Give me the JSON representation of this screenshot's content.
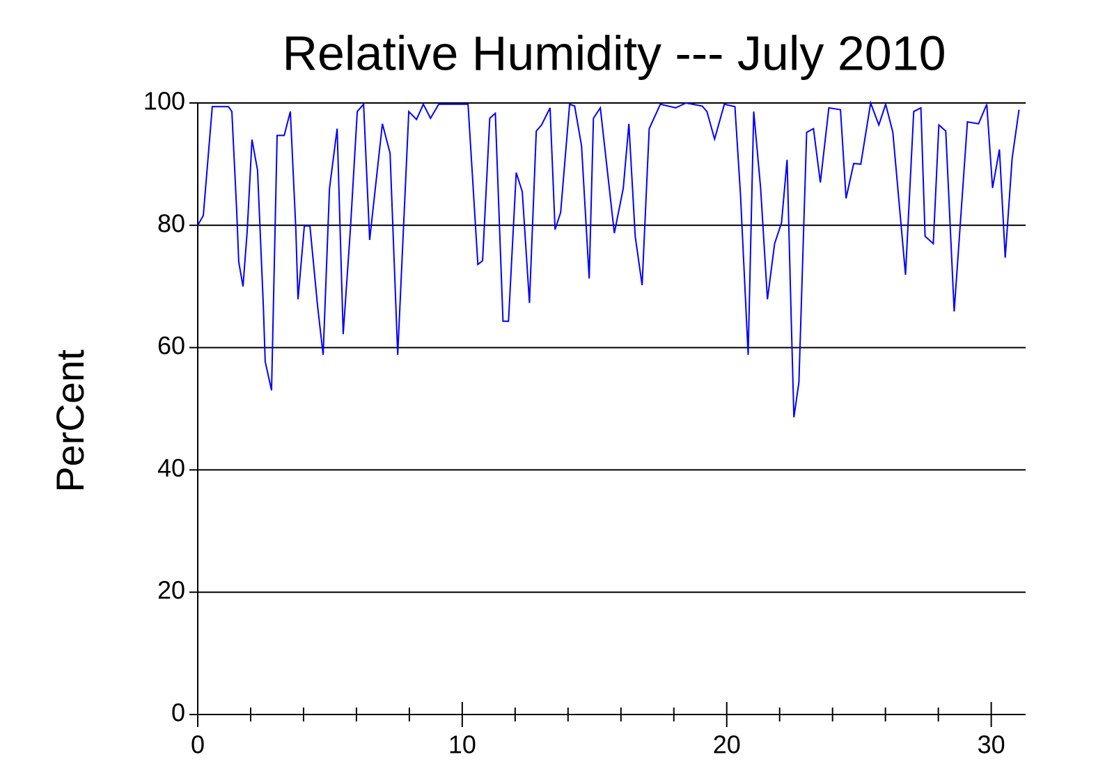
{
  "chart_data": {
    "type": "line",
    "title": "Relative Humidity --- July 2010",
    "y_label": "PerCent",
    "x": [
      0,
      0.21,
      0.55,
      1.16,
      1.29,
      1.47,
      1.55,
      1.71,
      1.87,
      2.05,
      2.26,
      2.48,
      2.55,
      2.79,
      3.0,
      3.27,
      3.5,
      3.71,
      3.79,
      4.03,
      4.24,
      4.53,
      4.74,
      4.98,
      5.27,
      5.5,
      5.77,
      6.03,
      6.27,
      6.5,
      6.98,
      7.27,
      7.56,
      7.98,
      8.27,
      8.53,
      8.8,
      9.11,
      10.22,
      10.59,
      10.77,
      11.04,
      11.25,
      11.54,
      11.75,
      12.04,
      12.27,
      12.54,
      12.8,
      13.0,
      13.32,
      13.51,
      13.72,
      14.06,
      14.25,
      14.51,
      14.8,
      14.96,
      15.22,
      15.75,
      16.09,
      16.3,
      16.54,
      16.8,
      17.07,
      17.49,
      18.07,
      18.46,
      19.07,
      19.25,
      19.54,
      19.91,
      20.31,
      20.52,
      20.81,
      21.02,
      21.28,
      21.54,
      21.81,
      22.07,
      22.28,
      22.44,
      22.54,
      22.73,
      23.02,
      23.28,
      23.54,
      23.86,
      24.3,
      24.51,
      24.8,
      25.07,
      25.44,
      25.75,
      26.01,
      26.28,
      26.76,
      27.07,
      27.34,
      27.5,
      27.81,
      28.02,
      28.28,
      28.6,
      29.1,
      29.52,
      29.83,
      30.05,
      30.31,
      30.53,
      30.79,
      31.05
    ],
    "series": [
      {
        "color": "#0000ff",
        "values": [
          80,
          81.6,
          99.4,
          99.4,
          98.6,
          82.7,
          74,
          70,
          79,
          94,
          89,
          66.8,
          57.7,
          53,
          94.7,
          94.7,
          98.6,
          79.3,
          67.9,
          79.9,
          79.9,
          66.8,
          58.8,
          86,
          95.8,
          62.2,
          79.3,
          98.6,
          99.8,
          77.6,
          96.6,
          91.8,
          58.8,
          98.6,
          97.3,
          99.8,
          97.5,
          99.8,
          99.8,
          73.6,
          74.2,
          97.5,
          98.3,
          64.3,
          64.3,
          88.6,
          85.5,
          67.3,
          95.4,
          96.4,
          99.2,
          79.3,
          82.1,
          99.8,
          99.5,
          93,
          71.3,
          97.5,
          99.2,
          78.7,
          86.1,
          96.6,
          78.2,
          70.2,
          95.8,
          99.8,
          99.2,
          100,
          99.5,
          98.6,
          94.1,
          99.8,
          99.4,
          85,
          58.8,
          98.6,
          86.1,
          67.9,
          77,
          80.4,
          90.7,
          64.5,
          48.6,
          54.3,
          95.2,
          95.8,
          87,
          99.2,
          98.9,
          84.4,
          90.1,
          90,
          100,
          96.4,
          99.8,
          95.2,
          71.9,
          98.6,
          99.2,
          78.2,
          77,
          96.4,
          95.4,
          65.9,
          96.9,
          96.6,
          99.8,
          86.1,
          92.4,
          74.7,
          90.9,
          98.9
        ]
      }
    ],
    "xlim": [
      0,
      31.3
    ],
    "xticks": [
      0,
      10,
      20,
      30
    ],
    "xminorticks": [
      2,
      4,
      6,
      8,
      12,
      14,
      16,
      18,
      22,
      24,
      26,
      28
    ],
    "ylim": [
      0,
      100
    ],
    "yticks": [
      0,
      20,
      40,
      60,
      80,
      100
    ],
    "grid": true
  }
}
